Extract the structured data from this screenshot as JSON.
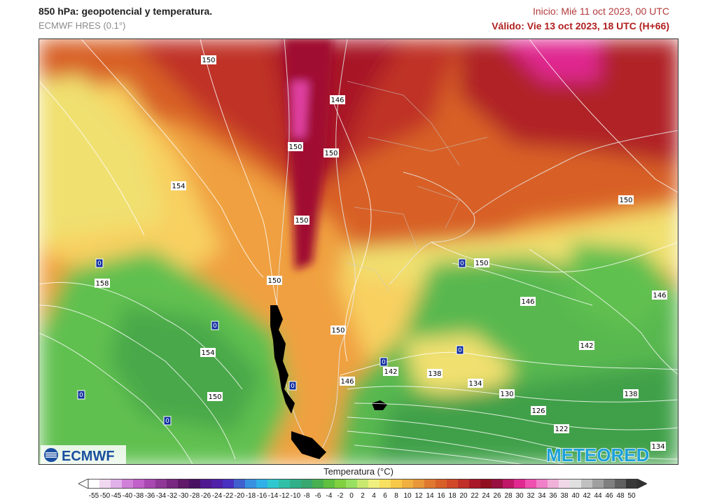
{
  "header": {
    "title": "850 hPa: geopotencial y temperatura.",
    "model": "ECMWF HRES (0.1°)",
    "init": "Inicio: Mié 11 oct 2023, 00 UTC",
    "valid": "Válido: Vie 13 oct 2023, 18 UTC (H+66)"
  },
  "logos": {
    "left": "ECMWF",
    "right": "METEORED"
  },
  "legend": {
    "title": "Temperatura (°C)",
    "ticks": [
      "-55",
      "-50",
      "-45",
      "-40",
      "-38",
      "-36",
      "-34",
      "-32",
      "-30",
      "-28",
      "-26",
      "-24",
      "-22",
      "-20",
      "-18",
      "-16",
      "-14",
      "-12",
      "-10",
      "-8",
      "-6",
      "-4",
      "-2",
      "0",
      "2",
      "4",
      "6",
      "8",
      "10",
      "12",
      "14",
      "16",
      "18",
      "20",
      "22",
      "24",
      "26",
      "28",
      "30",
      "32",
      "34",
      "36",
      "38",
      "40",
      "42",
      "44",
      "46",
      "48",
      "50"
    ],
    "colors": [
      "#ffffff",
      "#f0d8f0",
      "#e0b0e8",
      "#d080d8",
      "#c060c8",
      "#a848b0",
      "#903898",
      "#782880",
      "#601868",
      "#481060",
      "#501890",
      "#5020a8",
      "#4830c0",
      "#4060d0",
      "#3890e0",
      "#30b0e8",
      "#30c8d0",
      "#30c0a8",
      "#30b088",
      "#38a870",
      "#48b050",
      "#60c040",
      "#80d040",
      "#98e060",
      "#c8e870",
      "#f0f080",
      "#f8e060",
      "#f8c848",
      "#f0b040",
      "#e89838",
      "#e07830",
      "#d86028",
      "#d04828",
      "#c03028",
      "#a81828",
      "#901020",
      "#981040",
      "#c01868",
      "#e02890",
      "#f050b0",
      "#f080c8",
      "#f0b0d8",
      "#f0d8e8",
      "#e0e0e0",
      "#c0c0c0",
      "#a0a0a0",
      "#808080",
      "#606060",
      "#383838"
    ]
  },
  "map": {
    "geopotential_labels": [
      "150",
      "146",
      "150",
      "150",
      "154",
      "150",
      "150",
      "150",
      "158",
      "154",
      "150",
      "146",
      "142",
      "138",
      "134",
      "130",
      "126",
      "122",
      "150",
      "146",
      "142",
      "138",
      "146",
      "150",
      "134"
    ],
    "low_markers": [
      "0",
      "0",
      "0",
      "0",
      "0",
      "0",
      "0",
      "0"
    ]
  }
}
